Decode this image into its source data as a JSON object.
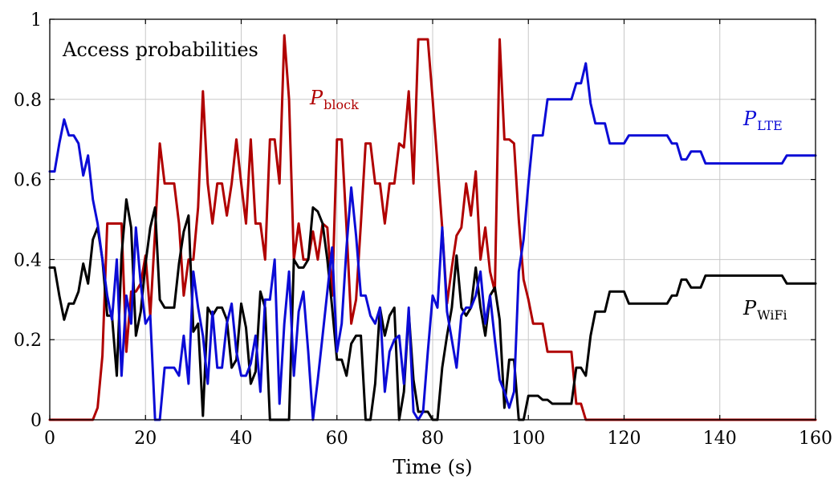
{
  "chart_data": {
    "type": "line",
    "title": "Access probabilities",
    "xlabel": "Time (s)",
    "ylabel": "",
    "xlim": [
      0,
      160
    ],
    "ylim": [
      0,
      1
    ],
    "xticks": [
      0,
      20,
      40,
      60,
      80,
      100,
      120,
      140,
      160
    ],
    "yticks": [
      0,
      0.2,
      0.4,
      0.6,
      0.8,
      1
    ],
    "ytick_labels": [
      "0",
      "0.2",
      "0.4",
      "0.6",
      "0.8",
      "1"
    ],
    "grid": true,
    "series": [
      {
        "name": "P_LTE",
        "label_main": "P",
        "label_sub": "LTE",
        "color": "#0b0bd6",
        "x": [
          0,
          1,
          2,
          3,
          4,
          5,
          6,
          7,
          8,
          9,
          10,
          11,
          12,
          13,
          14,
          15,
          16,
          17,
          18,
          19,
          20,
          21,
          22,
          23,
          24,
          25,
          26,
          27,
          28,
          29,
          30,
          31,
          32,
          33,
          34,
          35,
          36,
          37,
          38,
          39,
          40,
          41,
          42,
          43,
          44,
          45,
          46,
          47,
          48,
          49,
          50,
          51,
          52,
          53,
          54,
          55,
          56,
          57,
          58,
          59,
          60,
          61,
          62,
          63,
          64,
          65,
          66,
          67,
          68,
          69,
          70,
          71,
          72,
          73,
          74,
          75,
          76,
          77,
          78,
          79,
          80,
          81,
          82,
          83,
          84,
          85,
          86,
          87,
          88,
          89,
          90,
          91,
          92,
          93,
          94,
          95,
          96,
          97,
          98,
          99,
          100,
          101,
          102,
          103,
          104,
          105,
          106,
          107,
          108,
          109,
          110,
          111,
          112,
          113,
          114,
          115,
          116,
          117,
          118,
          119,
          120,
          121,
          122,
          123,
          124,
          125,
          126,
          127,
          128,
          129,
          130,
          131,
          132,
          133,
          134,
          135,
          136,
          137,
          138,
          139,
          140,
          141,
          142,
          143,
          144,
          145,
          146,
          147,
          148,
          149,
          150,
          151,
          152,
          153,
          154,
          155,
          156,
          157,
          158,
          159,
          160
        ],
        "y": [
          0.62,
          0.62,
          0.69,
          0.75,
          0.71,
          0.71,
          0.69,
          0.61,
          0.66,
          0.55,
          0.49,
          0.4,
          0.31,
          0.25,
          0.4,
          0.11,
          0.31,
          0.24,
          0.48,
          0.34,
          0.24,
          0.26,
          0.0,
          0.0,
          0.13,
          0.13,
          0.13,
          0.11,
          0.21,
          0.09,
          0.37,
          0.28,
          0.21,
          0.09,
          0.27,
          0.13,
          0.13,
          0.24,
          0.29,
          0.17,
          0.11,
          0.11,
          0.14,
          0.21,
          0.07,
          0.3,
          0.3,
          0.4,
          0.04,
          0.24,
          0.37,
          0.11,
          0.27,
          0.32,
          0.17,
          0.0,
          0.1,
          0.21,
          0.32,
          0.43,
          0.17,
          0.24,
          0.43,
          0.58,
          0.46,
          0.31,
          0.31,
          0.26,
          0.24,
          0.28,
          0.07,
          0.17,
          0.2,
          0.21,
          0.09,
          0.28,
          0.02,
          0.0,
          0.02,
          0.17,
          0.31,
          0.28,
          0.48,
          0.27,
          0.2,
          0.13,
          0.26,
          0.28,
          0.28,
          0.31,
          0.37,
          0.24,
          0.31,
          0.2,
          0.1,
          0.07,
          0.03,
          0.07,
          0.37,
          0.45,
          0.59,
          0.71,
          0.71,
          0.71,
          0.8,
          0.8,
          0.8,
          0.8,
          0.8,
          0.8,
          0.84,
          0.84,
          0.89,
          0.79,
          0.74,
          0.74,
          0.74,
          0.69,
          0.69,
          0.69,
          0.69,
          0.71,
          0.71,
          0.71,
          0.71,
          0.71,
          0.71,
          0.71,
          0.71,
          0.71,
          0.69,
          0.69,
          0.65,
          0.65,
          0.67,
          0.67,
          0.67,
          0.64,
          0.64,
          0.64,
          0.64,
          0.64,
          0.64,
          0.64,
          0.64,
          0.64,
          0.64,
          0.64,
          0.64,
          0.64,
          0.64,
          0.64,
          0.64,
          0.64,
          0.66,
          0.66,
          0.66,
          0.66,
          0.66,
          0.66,
          0.66
        ]
      },
      {
        "name": "P_WiFi",
        "label_main": "P",
        "label_sub": "WiFi",
        "color": "#000000",
        "x": [
          0,
          1,
          2,
          3,
          4,
          5,
          6,
          7,
          8,
          9,
          10,
          11,
          12,
          13,
          14,
          15,
          16,
          17,
          18,
          19,
          20,
          21,
          22,
          23,
          24,
          25,
          26,
          27,
          28,
          29,
          30,
          31,
          32,
          33,
          34,
          35,
          36,
          37,
          38,
          39,
          40,
          41,
          42,
          43,
          44,
          45,
          46,
          47,
          48,
          49,
          50,
          51,
          52,
          53,
          54,
          55,
          56,
          57,
          58,
          59,
          60,
          61,
          62,
          63,
          64,
          65,
          66,
          67,
          68,
          69,
          70,
          71,
          72,
          73,
          74,
          75,
          76,
          77,
          78,
          79,
          80,
          81,
          82,
          83,
          84,
          85,
          86,
          87,
          88,
          89,
          90,
          91,
          92,
          93,
          94,
          95,
          96,
          97,
          98,
          99,
          100,
          101,
          102,
          103,
          104,
          105,
          106,
          107,
          108,
          109,
          110,
          111,
          112,
          113,
          114,
          115,
          116,
          117,
          118,
          119,
          120,
          121,
          122,
          123,
          124,
          125,
          126,
          127,
          128,
          129,
          130,
          131,
          132,
          133,
          134,
          135,
          136,
          137,
          138,
          139,
          140,
          141,
          142,
          143,
          144,
          145,
          146,
          147,
          148,
          149,
          150,
          151,
          152,
          153,
          154,
          155,
          156,
          157,
          158,
          159,
          160
        ],
        "y": [
          0.38,
          0.38,
          0.31,
          0.25,
          0.29,
          0.29,
          0.32,
          0.39,
          0.34,
          0.45,
          0.48,
          0.4,
          0.26,
          0.26,
          0.11,
          0.41,
          0.55,
          0.48,
          0.21,
          0.27,
          0.39,
          0.48,
          0.53,
          0.3,
          0.28,
          0.28,
          0.28,
          0.39,
          0.47,
          0.51,
          0.22,
          0.24,
          0.01,
          0.28,
          0.26,
          0.28,
          0.28,
          0.25,
          0.13,
          0.15,
          0.29,
          0.23,
          0.09,
          0.12,
          0.32,
          0.28,
          0.0,
          0.0,
          0.0,
          0.0,
          0.0,
          0.4,
          0.38,
          0.38,
          0.4,
          0.53,
          0.52,
          0.49,
          0.4,
          0.28,
          0.15,
          0.15,
          0.11,
          0.19,
          0.21,
          0.21,
          0.0,
          0.0,
          0.09,
          0.28,
          0.21,
          0.26,
          0.28,
          0.0,
          0.07,
          0.27,
          0.1,
          0.02,
          0.02,
          0.02,
          0.0,
          0.0,
          0.13,
          0.21,
          0.28,
          0.41,
          0.28,
          0.26,
          0.28,
          0.38,
          0.28,
          0.21,
          0.31,
          0.33,
          0.25,
          0.03,
          0.15,
          0.15,
          0.0,
          0.0,
          0.06,
          0.06,
          0.06,
          0.05,
          0.05,
          0.04,
          0.04,
          0.04,
          0.04,
          0.04,
          0.13,
          0.13,
          0.11,
          0.21,
          0.27,
          0.27,
          0.27,
          0.32,
          0.32,
          0.32,
          0.32,
          0.29,
          0.29,
          0.29,
          0.29,
          0.29,
          0.29,
          0.29,
          0.29,
          0.29,
          0.31,
          0.31,
          0.35,
          0.35,
          0.33,
          0.33,
          0.33,
          0.36,
          0.36,
          0.36,
          0.36,
          0.36,
          0.36,
          0.36,
          0.36,
          0.36,
          0.36,
          0.36,
          0.36,
          0.36,
          0.36,
          0.36,
          0.36,
          0.36,
          0.34,
          0.34,
          0.34,
          0.34,
          0.34,
          0.34,
          0.34
        ]
      },
      {
        "name": "P_block",
        "label_main": "P",
        "label_sub": "block",
        "color": "#b00000",
        "x": [
          0,
          1,
          2,
          3,
          4,
          5,
          6,
          7,
          8,
          9,
          10,
          11,
          12,
          13,
          14,
          15,
          16,
          17,
          18,
          19,
          20,
          21,
          22,
          23,
          24,
          25,
          26,
          27,
          28,
          29,
          30,
          31,
          32,
          33,
          34,
          35,
          36,
          37,
          38,
          39,
          40,
          41,
          42,
          43,
          44,
          45,
          46,
          47,
          48,
          49,
          50,
          51,
          52,
          53,
          54,
          55,
          56,
          57,
          58,
          59,
          60,
          61,
          62,
          63,
          64,
          65,
          66,
          67,
          68,
          69,
          70,
          71,
          72,
          73,
          74,
          75,
          76,
          77,
          78,
          79,
          80,
          81,
          82,
          83,
          84,
          85,
          86,
          87,
          88,
          89,
          90,
          91,
          92,
          93,
          94,
          95,
          96,
          97,
          98,
          99,
          100,
          101,
          102,
          103,
          104,
          105,
          106,
          107,
          108,
          109,
          110,
          111,
          112,
          113,
          114,
          115,
          116,
          117,
          118,
          119,
          120,
          121,
          122,
          123,
          124,
          125,
          126,
          127,
          128,
          129,
          130,
          131,
          132,
          133,
          134,
          135,
          136,
          137,
          138,
          139,
          140,
          141,
          142,
          143,
          144,
          145,
          146,
          147,
          148,
          149,
          150,
          151,
          152,
          153,
          154,
          155,
          156,
          157,
          158,
          159,
          160
        ],
        "y": [
          0.0,
          0.0,
          0.0,
          0.0,
          0.0,
          0.0,
          0.0,
          0.0,
          0.0,
          0.0,
          0.03,
          0.16,
          0.49,
          0.49,
          0.49,
          0.49,
          0.17,
          0.32,
          0.32,
          0.34,
          0.41,
          0.26,
          0.47,
          0.69,
          0.59,
          0.59,
          0.59,
          0.49,
          0.31,
          0.4,
          0.4,
          0.53,
          0.82,
          0.59,
          0.49,
          0.59,
          0.59,
          0.51,
          0.59,
          0.7,
          0.59,
          0.49,
          0.7,
          0.49,
          0.49,
          0.4,
          0.7,
          0.7,
          0.59,
          0.96,
          0.8,
          0.4,
          0.49,
          0.4,
          0.4,
          0.47,
          0.4,
          0.49,
          0.48,
          0.31,
          0.7,
          0.7,
          0.48,
          0.24,
          0.3,
          0.49,
          0.69,
          0.69,
          0.59,
          0.59,
          0.49,
          0.59,
          0.59,
          0.69,
          0.68,
          0.82,
          0.59,
          0.95,
          0.95,
          0.95,
          0.8,
          0.64,
          0.48,
          0.29,
          0.38,
          0.46,
          0.48,
          0.59,
          0.51,
          0.62,
          0.4,
          0.48,
          0.37,
          0.32,
          0.95,
          0.7,
          0.7,
          0.69,
          0.5,
          0.35,
          0.3,
          0.24,
          0.24,
          0.24,
          0.17,
          0.17,
          0.17,
          0.17,
          0.17,
          0.17,
          0.04,
          0.04,
          0.0,
          0.0,
          0.0,
          0.0,
          0.0,
          0.0,
          0.0,
          0.0,
          0.0,
          0.0,
          0.0,
          0.0,
          0.0,
          0.0,
          0.0,
          0.0,
          0.0,
          0.0,
          0.0,
          0.0,
          0.0,
          0.0,
          0.0,
          0.0,
          0.0,
          0.0,
          0.0,
          0.0,
          0.0,
          0.0,
          0.0,
          0.0,
          0.0,
          0.0,
          0.0,
          0.0,
          0.0,
          0.0,
          0.0,
          0.0,
          0.0,
          0.0,
          0.0,
          0.0,
          0.0,
          0.0,
          0.0,
          0.0,
          0.0
        ]
      }
    ]
  }
}
